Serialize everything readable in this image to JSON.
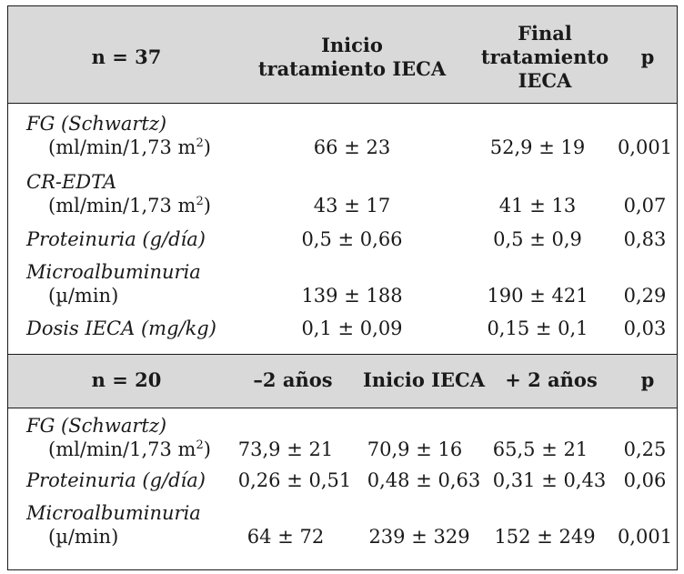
{
  "section1": {
    "header": {
      "col1": "n = 37",
      "col2_line1": "Inicio",
      "col2_line2": "tratamiento IECA",
      "col3_line1": "Final",
      "col3_line2": "tratamiento",
      "col3_line3": "IECA",
      "col4": "p"
    },
    "rows": [
      {
        "label": "FG (Schwartz)",
        "unit": "(ml/min/1,73 m",
        "unit_sup": "2",
        "unit_end": ")",
        "inicio": "66 ± 23",
        "final": "52,9 ± 19",
        "p": "0,001"
      },
      {
        "label": "CR-EDTA",
        "unit": "(ml/min/1,73 m",
        "unit_sup": "2",
        "unit_end": ")",
        "inicio": "43 ± 17",
        "final": "41 ± 13",
        "p": "0,07"
      },
      {
        "label": "Proteinuria (g/día)",
        "inicio": "0,5 ± 0,66",
        "final": "0,5 ± 0,9",
        "p": "0,83"
      },
      {
        "label": "Microalbuminuria",
        "unit": "(µ/min)",
        "inicio": "139 ± 188",
        "final": "190 ± 421",
        "p": "0,29"
      },
      {
        "label": "Dosis IECA (mg/kg)",
        "inicio": "0,1 ± 0,09",
        "final": "0,15 ± 0,1",
        "p": "0,03"
      }
    ]
  },
  "section2": {
    "header": {
      "col1": "n = 20",
      "col2": "–2 años",
      "col3": "Inicio IECA",
      "col4": "+ 2 años",
      "col5": "p"
    },
    "rows": [
      {
        "label": "FG (Schwartz)",
        "unit": "(ml/min/1,73 m",
        "unit_sup": "2",
        "unit_end": ")",
        "minus2": "73,9 ± 21",
        "inicio": "70,9 ± 16",
        "plus2": "65,5 ± 21",
        "p": "0,25"
      },
      {
        "label": "Proteinuria (g/día)",
        "minus2": "0,26 ± 0,51",
        "inicio": "0,48 ± 0,63",
        "plus2": "0,31 ± 0,43",
        "p": "0,06"
      },
      {
        "label": "Microalbuminuria",
        "unit": "(µ/min)",
        "minus2": "64 ± 72",
        "inicio": "239 ± 329",
        "plus2": "152 ± 249",
        "p": "0,001"
      }
    ]
  }
}
